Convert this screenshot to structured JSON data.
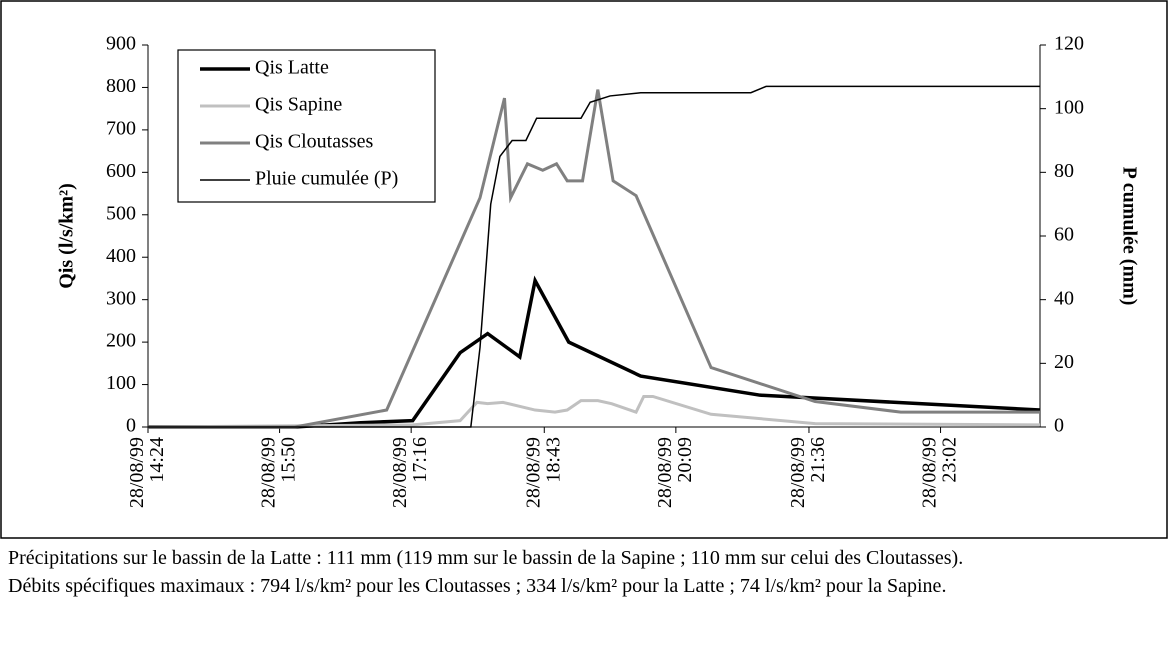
{
  "chart_data": {
    "type": "line",
    "ylabel": "Qis (l/s/km²)",
    "y2label": "P cumulée (mm)",
    "xlim": [
      864,
      1447
    ],
    "xticks": [
      {
        "value": 864,
        "label": "28/08/99 14:24"
      },
      {
        "value": 950,
        "label": "28/08/99 15:50"
      },
      {
        "value": 1036,
        "label": "28/08/99 17:16"
      },
      {
        "value": 1123,
        "label": "28/08/99 18:43"
      },
      {
        "value": 1209,
        "label": "28/08/99 20:09"
      },
      {
        "value": 1296,
        "label": "28/08/99 21:36"
      },
      {
        "value": 1382,
        "label": "28/08/99 23:02"
      }
    ],
    "ylim": [
      0,
      900
    ],
    "yticks": [
      0,
      100,
      200,
      300,
      400,
      500,
      600,
      700,
      800,
      900
    ],
    "y2lim": [
      0,
      120
    ],
    "y2ticks": [
      0,
      20,
      40,
      60,
      80,
      100,
      120
    ],
    "legend": "upper-left",
    "series": [
      {
        "name": "Qis Latte",
        "color": "#000000",
        "width": 3.5,
        "x": [
          864,
          960,
          1003,
          1037,
          1068,
          1086,
          1107,
          1117,
          1139,
          1186,
          1264,
          1447
        ],
        "values": [
          0,
          0,
          10,
          15,
          175,
          220,
          165,
          345,
          200,
          120,
          75,
          40
        ]
      },
      {
        "name": "Qis Sapine",
        "color": "#c0c0c0",
        "width": 3,
        "x": [
          864,
          1037,
          1068,
          1079,
          1086,
          1096,
          1117,
          1130,
          1138,
          1147,
          1158,
          1167,
          1183,
          1188,
          1194,
          1232,
          1300,
          1447
        ],
        "values": [
          0,
          5,
          15,
          58,
          55,
          58,
          40,
          35,
          40,
          62,
          62,
          55,
          35,
          72,
          72,
          30,
          8,
          5
        ]
      },
      {
        "name": "Qis Cloutasses",
        "color": "#808080",
        "width": 3,
        "x": [
          864,
          960,
          1020,
          1081,
          1097,
          1101,
          1112,
          1122,
          1131,
          1138,
          1148,
          1158,
          1168,
          1183,
          1232,
          1300,
          1356,
          1447
        ],
        "values": [
          0,
          0,
          40,
          540,
          775,
          540,
          620,
          605,
          620,
          580,
          580,
          795,
          580,
          545,
          140,
          60,
          35,
          35
        ]
      },
      {
        "name": "Pluie cumulée (P)",
        "color": "#000000",
        "width": 1.5,
        "axis": "y2",
        "x": [
          864,
          1075,
          1081,
          1088,
          1094,
          1102,
          1111,
          1118,
          1147,
          1153,
          1166,
          1186,
          1258,
          1268,
          1284,
          1447
        ],
        "values": [
          0,
          0,
          25,
          70,
          85,
          90,
          90,
          97,
          97,
          102,
          104,
          105,
          105,
          107,
          107,
          107
        ]
      }
    ],
    "notes": [
      "Précipitations sur le bassin de la Latte : 111 mm (119 mm sur le bassin de la Sapine ; 110 mm sur celui des Cloutasses).",
      "Débits spécifiques maximaux : 794 l/s/km² pour les Cloutasses ; 334 l/s/km² pour la Latte ; 74 l/s/km² pour la Sapine."
    ]
  }
}
